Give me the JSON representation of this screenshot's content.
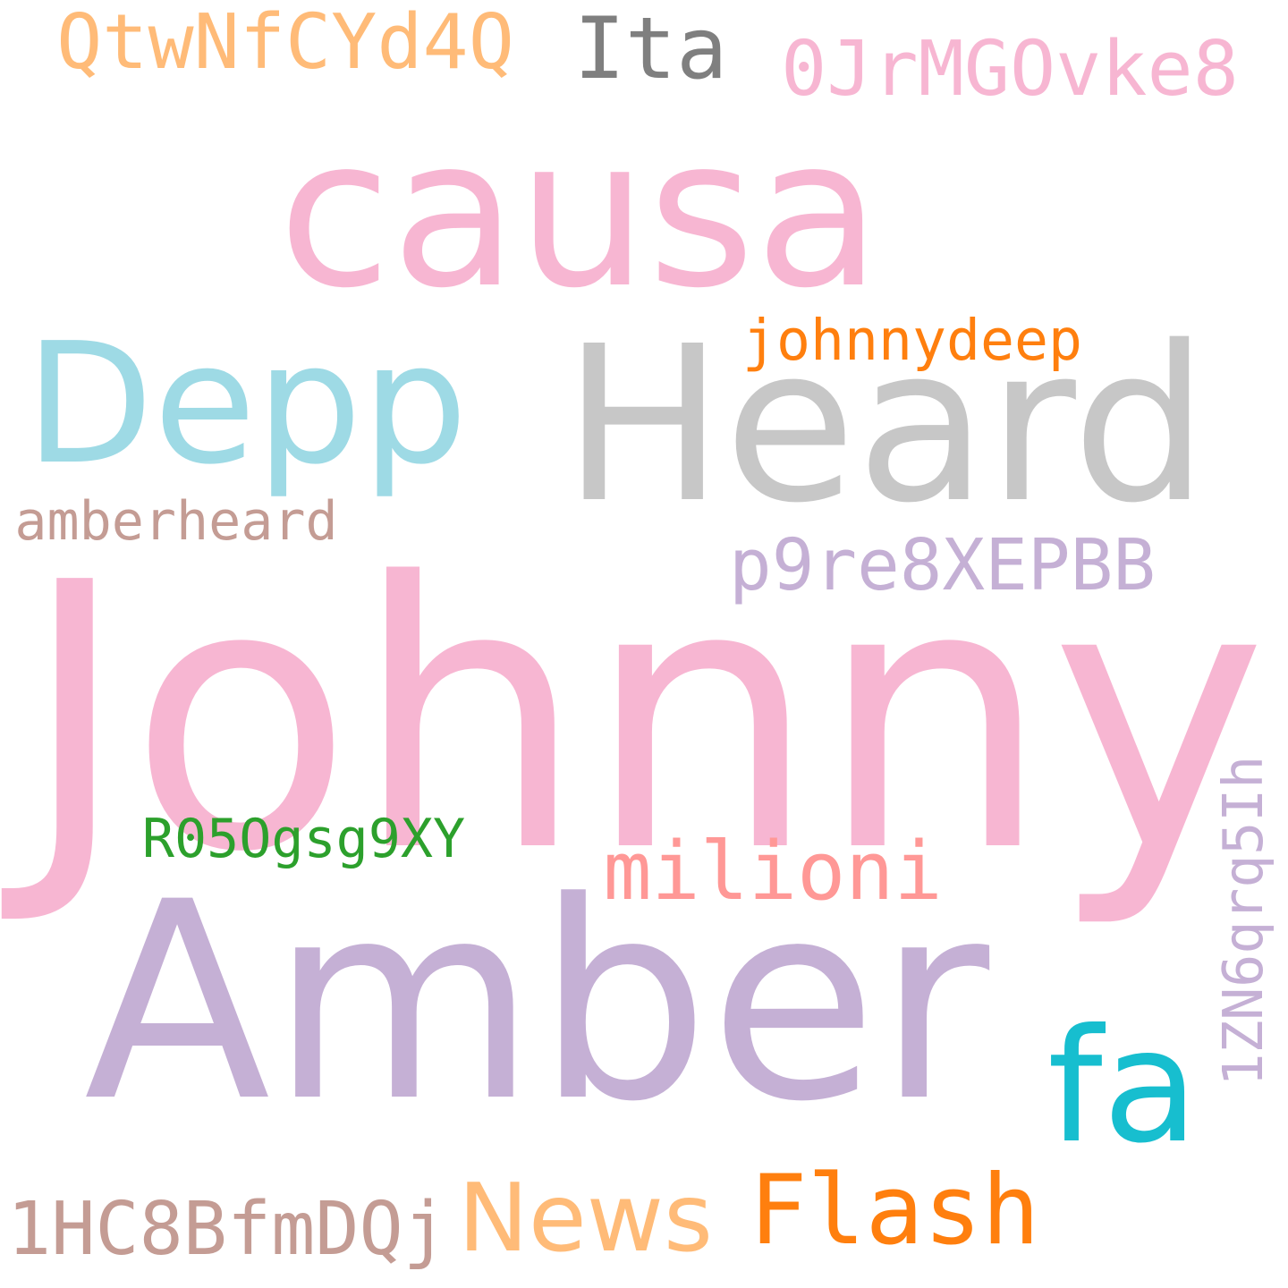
{
  "colors": {
    "pink": "#f7b6d2",
    "light_blue": "#9edae5",
    "light_gray": "#c7c7c7",
    "gray": "#7f7f7f",
    "light_purple": "#c5b0d5",
    "salmon": "#ff9896",
    "cyan": "#17becf",
    "peach": "#ffbb78",
    "orange": "#ff7f0e",
    "green": "#2ca02c",
    "brown": "#c49c94"
  },
  "words": [
    {
      "id": "causa",
      "text": "causa",
      "color": "#f7b6d2"
    },
    {
      "id": "heard",
      "text": "Heard",
      "color": "#c7c7c7"
    },
    {
      "id": "johnny",
      "text": "Johnny",
      "color": "#f7b6d2"
    },
    {
      "id": "amber",
      "text": "Amber",
      "color": "#c5b0d5"
    },
    {
      "id": "depp",
      "text": "Depp",
      "color": "#9edae5"
    },
    {
      "id": "fa",
      "text": "fa",
      "color": "#17becf"
    },
    {
      "id": "milioni",
      "text": "milioni",
      "color": "#ff9896"
    },
    {
      "id": "flash",
      "text": "Flash",
      "color": "#ff7f0e"
    },
    {
      "id": "news",
      "text": "News",
      "color": "#ffbb78"
    },
    {
      "id": "ita",
      "text": "Ita",
      "color": "#7f7f7f"
    },
    {
      "id": "qtwnfcyd4q",
      "text": "QtwNfCYd4Q",
      "color": "#ffbb78"
    },
    {
      "id": "0jrmgovke8",
      "text": "0JrMGOvke8",
      "color": "#f7b6d2"
    },
    {
      "id": "johnnydeep",
      "text": "johnnydeep",
      "color": "#ff7f0e"
    },
    {
      "id": "amberheard",
      "text": "amberheard",
      "color": "#c49c94"
    },
    {
      "id": "p9re8xepbb",
      "text": "p9re8XEPBB",
      "color": "#c5b0d5"
    },
    {
      "id": "r05ogsg9xy",
      "text": "R05Ogsg9XY",
      "color": "#2ca02c"
    },
    {
      "id": "1hc8bfmdqj",
      "text": "1HC8BfmDQj",
      "color": "#c49c94"
    },
    {
      "id": "1zn6qrq5ih",
      "text": "1ZN6qrq5Ih",
      "color": "#c5b0d5"
    }
  ]
}
